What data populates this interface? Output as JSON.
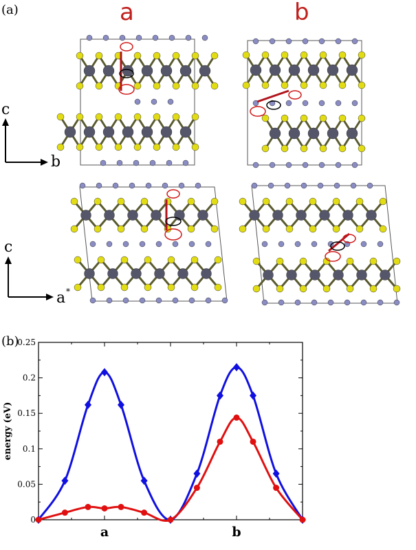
{
  "panel_a": {
    "label": "(a)",
    "column_labels": [
      "a",
      "b"
    ],
    "axes_top": {
      "vertical": "c",
      "horizontal": "b"
    },
    "axes_bottom": {
      "vertical": "c",
      "horizontal": "a",
      "horizontal_sup": "*"
    },
    "colors": {
      "metal": "#55566a",
      "chalcogen": "#e2dc14",
      "intercalant": "#8a8cc4",
      "arrow": "#b0141c",
      "highlight": "#d01818"
    }
  },
  "panel_b": {
    "label": "(b)"
  },
  "chart_data": {
    "type": "line",
    "title": "",
    "xlabel": "",
    "ylabel": "energy (eV)",
    "xlim": [
      0,
      4
    ],
    "ylim": [
      0,
      0.25
    ],
    "yticks": [
      "0",
      "0.05",
      "0.1",
      "0.15",
      "0.2",
      "0.25"
    ],
    "xtick_labels": [
      {
        "x": 1,
        "label": "a"
      },
      {
        "x": 3,
        "label": "b"
      }
    ],
    "colors": {
      "blue": "#1010e0",
      "red": "#e01010"
    },
    "series": [
      {
        "color": "#1010e0",
        "marker": "diamond",
        "x": [
          0,
          0.4,
          0.75,
          1.0,
          1.25,
          1.6,
          2.0,
          2.4,
          2.75,
          3.0,
          3.25,
          3.6,
          4.0
        ],
        "y": [
          0,
          0.055,
          0.162,
          0.208,
          0.162,
          0.055,
          0,
          0.065,
          0.175,
          0.215,
          0.175,
          0.065,
          0
        ]
      },
      {
        "color": "#e01010",
        "marker": "circle",
        "x": [
          0,
          0.4,
          0.75,
          1.0,
          1.25,
          1.6,
          2.0,
          2.4,
          2.75,
          3.0,
          3.25,
          3.6,
          4.0
        ],
        "y": [
          0,
          0.01,
          0.018,
          0.016,
          0.018,
          0.01,
          0,
          0.045,
          0.11,
          0.144,
          0.11,
          0.045,
          0
        ]
      }
    ]
  }
}
